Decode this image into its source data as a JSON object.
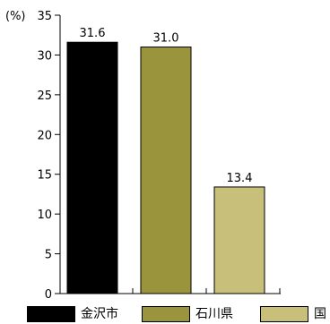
{
  "chart_data": {
    "type": "bar",
    "ylabel": "(%)",
    "ylim": [
      0,
      35
    ],
    "yticks": [
      0,
      5,
      10,
      15,
      20,
      25,
      30,
      35
    ],
    "categories": [
      "金沢市",
      "石川県",
      "国"
    ],
    "values": [
      31.6,
      31.0,
      13.4
    ],
    "value_labels": [
      "31.6",
      "31.0",
      "13.4"
    ],
    "colors": [
      "#000000",
      "#9a943c",
      "#c8c07a"
    ],
    "legend_placement": "bottom",
    "grid": false
  }
}
